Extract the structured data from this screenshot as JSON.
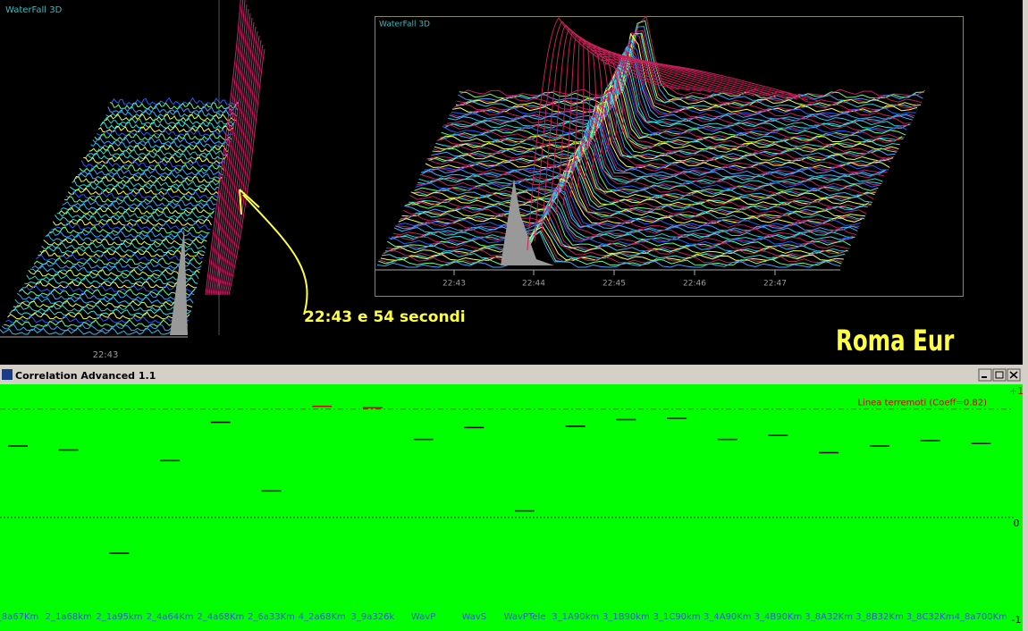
{
  "waterfall_left": {
    "title": "WaterFall 3D",
    "time_labels": [
      "22:43"
    ]
  },
  "waterfall_right": {
    "title": "WaterFall 3D",
    "time_labels": [
      "22:43",
      "22:44",
      "22:45",
      "22:46",
      "22:47"
    ]
  },
  "annotation": "22:43 e 54 secondi",
  "station": "Roma Eur",
  "window_title": "Correlation Advanced 1.1",
  "chart_data": {
    "type": "marker",
    "categories": [
      "_8a67Km",
      "2_1a68km",
      "2_1a95km",
      "2_4a64Km",
      "2_4a68Km",
      "2_6a33Km",
      "4_2a68Km",
      "3_9a326k",
      "WavP",
      "WavS",
      "WavPTele",
      "3_1A90km",
      "3_1B90km",
      "3_1C90km",
      "3_4A90Km",
      "3_4B90Km",
      "3_8A32Km",
      "3_8B32Km",
      "3_8C32Km",
      "4_8a700Km"
    ],
    "values": [
      0.54,
      0.51,
      -0.27,
      0.43,
      0.72,
      0.2,
      0.84,
      0.83,
      0.59,
      0.68,
      0.05,
      0.69,
      0.74,
      0.75,
      0.59,
      0.62,
      0.49,
      0.54,
      0.58,
      0.56
    ],
    "ylim": [
      -1,
      1
    ],
    "yticks": [
      {
        "value": 1,
        "label": "+1"
      },
      0,
      {
        "value": -1,
        "label": "-1"
      }
    ],
    "threshold": {
      "value": 0.82,
      "label": "Linea terremoti (Coeff=0.82)",
      "color": "#cc0000"
    },
    "color": "#000000",
    "background": "#00ff00"
  }
}
